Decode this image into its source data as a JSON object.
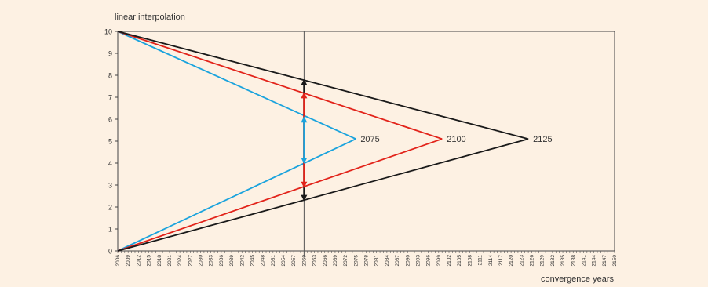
{
  "chart_data": {
    "type": "line",
    "ylabel": "linear interpolation",
    "xlabel": "convergence years",
    "xlim": [
      2006,
      2150
    ],
    "ylim": [
      0,
      10
    ],
    "y_ticks": [
      0,
      1,
      2,
      3,
      4,
      5,
      6,
      7,
      8,
      9,
      10
    ],
    "x_ticks": [
      "2006",
      "2009",
      "2012",
      "2015",
      "2018",
      "2021",
      "2024",
      "2027",
      "2030",
      "2033",
      "2036",
      "2039",
      "2042",
      "2045",
      "2048",
      "2051",
      "2054",
      "2057",
      "2060",
      "2063",
      "2066",
      "2069",
      "2072",
      "2075",
      "2078",
      "2081",
      "2084",
      "2087",
      "2090",
      "2093",
      "2096",
      "2099",
      "2102",
      "2105",
      "2108",
      "2111",
      "2114",
      "2117",
      "2120",
      "2123",
      "2126",
      "2129",
      "2132",
      "2135",
      "2138",
      "2141",
      "2144",
      "2147",
      "2150"
    ],
    "reference_year": 2060,
    "series": [
      {
        "label": "2075",
        "color": "#1aa3dd",
        "apex": [
          2075,
          5.1
        ],
        "upper": [
          [
            2006,
            10
          ],
          [
            2075,
            5.1
          ]
        ],
        "lower": [
          [
            2006,
            0
          ],
          [
            2075,
            5.1
          ]
        ]
      },
      {
        "label": "2100",
        "color": "#e2231a",
        "apex": [
          2100,
          5.1
        ],
        "upper": [
          [
            2006,
            10
          ],
          [
            2100,
            5.1
          ]
        ],
        "lower": [
          [
            2006,
            0
          ],
          [
            2100,
            5.1
          ]
        ]
      },
      {
        "label": "2125",
        "color": "#1a1a1a",
        "apex": [
          2125,
          5.1
        ],
        "upper": [
          [
            2006,
            10
          ],
          [
            2125,
            5.1
          ]
        ],
        "lower": [
          [
            2006,
            0
          ],
          [
            2125,
            5.1
          ]
        ]
      }
    ],
    "arrows": [
      {
        "color": "#1a1a1a",
        "from": 2.3,
        "to": 7.8
      },
      {
        "color": "#e2231a",
        "from": 2.9,
        "to": 7.2
      },
      {
        "color": "#1aa3dd",
        "from": 4.0,
        "to": 6.1
      }
    ]
  }
}
